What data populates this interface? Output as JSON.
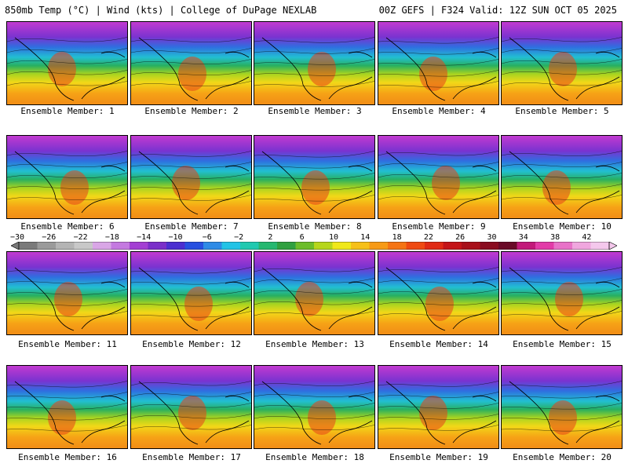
{
  "header": {
    "left": "850mb Temp (°C) | Wind (kts) | College of DuPage NEXLAB",
    "right": "00Z GEFS | F324 Valid: 12Z SUN OCT 05 2025"
  },
  "panels": [
    {
      "label": "Ensemble Member: 1"
    },
    {
      "label": "Ensemble Member: 2"
    },
    {
      "label": "Ensemble Member: 3"
    },
    {
      "label": "Ensemble Member: 4"
    },
    {
      "label": "Ensemble Member: 5"
    },
    {
      "label": "Ensemble Member: 6"
    },
    {
      "label": "Ensemble Member: 7"
    },
    {
      "label": "Ensemble Member: 8"
    },
    {
      "label": "Ensemble Member: 9"
    },
    {
      "label": "Ensemble Member: 10"
    },
    {
      "label": "Ensemble Member: 11"
    },
    {
      "label": "Ensemble Member: 12"
    },
    {
      "label": "Ensemble Member: 13"
    },
    {
      "label": "Ensemble Member: 14"
    },
    {
      "label": "Ensemble Member: 15"
    },
    {
      "label": "Ensemble Member: 16"
    },
    {
      "label": "Ensemble Member: 17"
    },
    {
      "label": "Ensemble Member: 18"
    },
    {
      "label": "Ensemble Member: 19"
    },
    {
      "label": "Ensemble Member: 20"
    }
  ],
  "colorbar": {
    "ticks": [
      "−30",
      "−26",
      "−22",
      "−18",
      "−14",
      "−10",
      "−6",
      "−2",
      "2",
      "6",
      "10",
      "14",
      "18",
      "22",
      "26",
      "30",
      "34",
      "38",
      "42"
    ],
    "colors": [
      "#7a7a7a",
      "#9a9a9a",
      "#b4b4b4",
      "#c8c8c8",
      "#d9a6e6",
      "#c479e0",
      "#a33fd3",
      "#7a2fc9",
      "#4b2fd0",
      "#2750e0",
      "#2e8be6",
      "#22c3e6",
      "#20c9b0",
      "#26b870",
      "#30a040",
      "#6cbd2a",
      "#b6d61c",
      "#f0e81a",
      "#f6c018",
      "#f79a16",
      "#f57414",
      "#ef4a12",
      "#e02a14",
      "#c41418",
      "#a8101a",
      "#8a0c20",
      "#6a0a28",
      "#c2197a",
      "#e23ba8",
      "#e872c8",
      "#f0a6de",
      "#f4c8ec"
    ]
  }
}
